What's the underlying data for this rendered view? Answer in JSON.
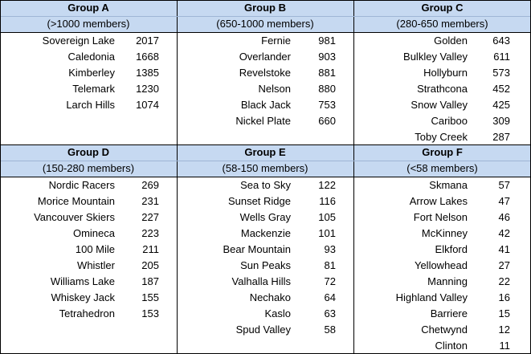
{
  "groups": [
    {
      "title": "Group A",
      "subtitle": "(>1000 members)",
      "clubs": [
        {
          "name": "Sovereign Lake",
          "members": "2017"
        },
        {
          "name": "Caledonia",
          "members": "1668"
        },
        {
          "name": "Kimberley",
          "members": "1385"
        },
        {
          "name": "Telemark",
          "members": "1230"
        },
        {
          "name": "Larch Hills",
          "members": "1074"
        }
      ]
    },
    {
      "title": "Group B",
      "subtitle": "(650-1000 members)",
      "clubs": [
        {
          "name": "Fernie",
          "members": "981"
        },
        {
          "name": "Overlander",
          "members": "903"
        },
        {
          "name": "Revelstoke",
          "members": "881"
        },
        {
          "name": "Nelson",
          "members": "880"
        },
        {
          "name": "Black Jack",
          "members": "753"
        },
        {
          "name": "Nickel Plate",
          "members": "660"
        }
      ]
    },
    {
      "title": "Group C",
      "subtitle": "(280-650 members)",
      "clubs": [
        {
          "name": "Golden",
          "members": "643"
        },
        {
          "name": "Bulkley Valley",
          "members": "611"
        },
        {
          "name": "Hollyburn",
          "members": "573"
        },
        {
          "name": "Strathcona",
          "members": "452"
        },
        {
          "name": "Snow Valley",
          "members": "425"
        },
        {
          "name": "Cariboo",
          "members": "309"
        },
        {
          "name": "Toby Creek",
          "members": "287"
        }
      ]
    },
    {
      "title": "Group D",
      "subtitle": "(150-280 members)",
      "clubs": [
        {
          "name": "Nordic Racers",
          "members": "269"
        },
        {
          "name": "Morice Mountain",
          "members": "231"
        },
        {
          "name": "Vancouver Skiers",
          "members": "227"
        },
        {
          "name": "Omineca",
          "members": "223"
        },
        {
          "name": "100 Mile",
          "members": "211"
        },
        {
          "name": "Whistler",
          "members": "205"
        },
        {
          "name": "Williams Lake",
          "members": "187"
        },
        {
          "name": "Whiskey Jack",
          "members": "155"
        },
        {
          "name": "Tetrahedron",
          "members": "153"
        }
      ]
    },
    {
      "title": "Group E",
      "subtitle": "(58-150 members)",
      "clubs": [
        {
          "name": "Sea to Sky",
          "members": "122"
        },
        {
          "name": "Sunset Ridge",
          "members": "116"
        },
        {
          "name": "Wells Gray",
          "members": "105"
        },
        {
          "name": "Mackenzie",
          "members": "101"
        },
        {
          "name": "Bear Mountain",
          "members": "93"
        },
        {
          "name": "Sun Peaks",
          "members": "81"
        },
        {
          "name": "Valhalla Hills",
          "members": "72"
        },
        {
          "name": "Nechako",
          "members": "64"
        },
        {
          "name": "Kaslo",
          "members": "63"
        },
        {
          "name": "Spud Valley",
          "members": "58"
        }
      ]
    },
    {
      "title": "Group F",
      "subtitle": "(<58 members)",
      "clubs": [
        {
          "name": "Skmana",
          "members": "57"
        },
        {
          "name": "Arrow Lakes",
          "members": "47"
        },
        {
          "name": "Fort Nelson",
          "members": "46"
        },
        {
          "name": "McKinney",
          "members": "42"
        },
        {
          "name": "Elkford",
          "members": "41"
        },
        {
          "name": "Yellowhead",
          "members": "27"
        },
        {
          "name": "Manning",
          "members": "22"
        },
        {
          "name": "Highland Valley",
          "members": "16"
        },
        {
          "name": "Barriere",
          "members": "15"
        },
        {
          "name": "Chetwynd",
          "members": "12"
        },
        {
          "name": "Clinton",
          "members": "11"
        }
      ]
    }
  ]
}
